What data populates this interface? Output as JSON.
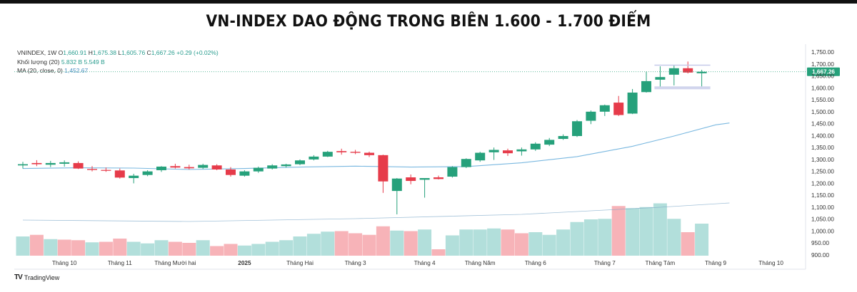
{
  "page": {
    "title": "VN-INDEX DAO ĐỘNG TRONG BIÊN 1.600 - 1.700 ĐIỂM"
  },
  "legend": {
    "symbol": "VNINDEX, 1W",
    "o_label": "O",
    "o_value": "1,660.91",
    "h_label": "H",
    "h_value": "1,675.38",
    "l_label": "L",
    "l_value": "1,605.76",
    "c_label": "C",
    "c_value": "1,667.26",
    "change": "+0.29 (+0.02%)",
    "volume_label": "Khối lượng (20)",
    "volume_values": "5.832 B  5.549 B",
    "ma_label": "MA (20, close, 0)",
    "ma_value": "1,452.67"
  },
  "brand": {
    "name": "TradingView",
    "logo": "TV"
  },
  "colors": {
    "up": "#26a17b",
    "down": "#e63b4a",
    "up_vol": "#b2dfdb",
    "down_vol": "#f7b3b8",
    "ma": "#7ab8e0",
    "price_tag": "#26a17b"
  },
  "chart_data": {
    "type": "candlestick",
    "interval": "1W",
    "y_price_ticks": [
      "1,750.00",
      "1,700.00",
      "1,650.00",
      "1,600.00",
      "1,550.00",
      "1,500.00",
      "1,450.00",
      "1,400.00",
      "1,350.00",
      "1,300.00",
      "1,250.00",
      "1,200.00",
      "1,150.00",
      "1,100.00",
      "1,050.00",
      "1,000.00",
      "950.00",
      "900.00"
    ],
    "y_tick_values": [
      1750,
      1700,
      1650,
      1600,
      1550,
      1500,
      1450,
      1400,
      1350,
      1300,
      1250,
      1200,
      1150,
      1100,
      1050,
      1000,
      950,
      900
    ],
    "x_tick_labels": [
      {
        "label": "Tháng 10",
        "index": 3
      },
      {
        "label": "Tháng 11",
        "index": 7
      },
      {
        "label": "Tháng Mười hai",
        "index": 11
      },
      {
        "label": "2025",
        "index": 16
      },
      {
        "label": "Tháng Hai",
        "index": 20
      },
      {
        "label": "Tháng 3",
        "index": 24
      },
      {
        "label": "Tháng 4",
        "index": 29
      },
      {
        "label": "Tháng Năm",
        "index": 33
      },
      {
        "label": "Tháng 6",
        "index": 37
      },
      {
        "label": "Tháng 7",
        "index": 42
      },
      {
        "label": "Tháng Tám",
        "index": 46
      },
      {
        "label": "Tháng 9",
        "index": 50
      },
      {
        "label": "Tháng 10",
        "index": 54
      }
    ],
    "last_price": "1,667.26",
    "last_price_value": 1667.26,
    "candles": [
      {
        "o": 1275,
        "h": 1290,
        "l": 1262,
        "c": 1280
      },
      {
        "o": 1285,
        "h": 1297,
        "l": 1272,
        "c": 1280
      },
      {
        "o": 1278,
        "h": 1294,
        "l": 1268,
        "c": 1285
      },
      {
        "o": 1282,
        "h": 1296,
        "l": 1270,
        "c": 1288
      },
      {
        "o": 1285,
        "h": 1292,
        "l": 1260,
        "c": 1262
      },
      {
        "o": 1260,
        "h": 1272,
        "l": 1250,
        "c": 1256
      },
      {
        "o": 1256,
        "h": 1266,
        "l": 1248,
        "c": 1254
      },
      {
        "o": 1254,
        "h": 1262,
        "l": 1220,
        "c": 1224
      },
      {
        "o": 1222,
        "h": 1240,
        "l": 1200,
        "c": 1232
      },
      {
        "o": 1235,
        "h": 1255,
        "l": 1230,
        "c": 1250
      },
      {
        "o": 1255,
        "h": 1272,
        "l": 1248,
        "c": 1270
      },
      {
        "o": 1272,
        "h": 1282,
        "l": 1262,
        "c": 1266
      },
      {
        "o": 1268,
        "h": 1278,
        "l": 1258,
        "c": 1263
      },
      {
        "o": 1265,
        "h": 1282,
        "l": 1260,
        "c": 1277
      },
      {
        "o": 1275,
        "h": 1280,
        "l": 1255,
        "c": 1258
      },
      {
        "o": 1258,
        "h": 1268,
        "l": 1228,
        "c": 1235
      },
      {
        "o": 1232,
        "h": 1255,
        "l": 1228,
        "c": 1250
      },
      {
        "o": 1250,
        "h": 1270,
        "l": 1244,
        "c": 1265
      },
      {
        "o": 1262,
        "h": 1280,
        "l": 1258,
        "c": 1275
      },
      {
        "o": 1272,
        "h": 1282,
        "l": 1266,
        "c": 1279
      },
      {
        "o": 1280,
        "h": 1300,
        "l": 1276,
        "c": 1296
      },
      {
        "o": 1300,
        "h": 1318,
        "l": 1296,
        "c": 1312
      },
      {
        "o": 1312,
        "h": 1336,
        "l": 1310,
        "c": 1332
      },
      {
        "o": 1335,
        "h": 1345,
        "l": 1320,
        "c": 1330
      },
      {
        "o": 1332,
        "h": 1340,
        "l": 1322,
        "c": 1328
      },
      {
        "o": 1328,
        "h": 1333,
        "l": 1310,
        "c": 1318
      },
      {
        "o": 1318,
        "h": 1320,
        "l": 1160,
        "c": 1208
      },
      {
        "o": 1168,
        "h": 1222,
        "l": 1070,
        "c": 1220
      },
      {
        "o": 1225,
        "h": 1237,
        "l": 1196,
        "c": 1210
      },
      {
        "o": 1215,
        "h": 1220,
        "l": 1140,
        "c": 1222
      },
      {
        "o": 1225,
        "h": 1232,
        "l": 1216,
        "c": 1218
      },
      {
        "o": 1228,
        "h": 1272,
        "l": 1224,
        "c": 1268
      },
      {
        "o": 1268,
        "h": 1305,
        "l": 1264,
        "c": 1302
      },
      {
        "o": 1296,
        "h": 1332,
        "l": 1290,
        "c": 1328
      },
      {
        "o": 1330,
        "h": 1350,
        "l": 1298,
        "c": 1340
      },
      {
        "o": 1338,
        "h": 1345,
        "l": 1315,
        "c": 1326
      },
      {
        "o": 1334,
        "h": 1350,
        "l": 1316,
        "c": 1342
      },
      {
        "o": 1342,
        "h": 1372,
        "l": 1336,
        "c": 1366
      },
      {
        "o": 1362,
        "h": 1390,
        "l": 1356,
        "c": 1382
      },
      {
        "o": 1386,
        "h": 1405,
        "l": 1382,
        "c": 1398
      },
      {
        "o": 1398,
        "h": 1465,
        "l": 1394,
        "c": 1460
      },
      {
        "o": 1462,
        "h": 1505,
        "l": 1448,
        "c": 1500
      },
      {
        "o": 1500,
        "h": 1530,
        "l": 1482,
        "c": 1527
      },
      {
        "o": 1538,
        "h": 1566,
        "l": 1482,
        "c": 1486
      },
      {
        "o": 1492,
        "h": 1595,
        "l": 1490,
        "c": 1580
      },
      {
        "o": 1582,
        "h": 1668,
        "l": 1580,
        "c": 1628
      },
      {
        "o": 1634,
        "h": 1690,
        "l": 1605,
        "c": 1645
      },
      {
        "o": 1655,
        "h": 1695,
        "l": 1610,
        "c": 1682
      },
      {
        "o": 1682,
        "h": 1710,
        "l": 1660,
        "c": 1664
      },
      {
        "o": 1660.91,
        "h": 1675.38,
        "l": 1605.76,
        "c": 1667.26
      }
    ],
    "volume": [
      {
        "v": 0.72,
        "dir": "up"
      },
      {
        "v": 0.78,
        "dir": "down"
      },
      {
        "v": 0.62,
        "dir": "up"
      },
      {
        "v": 0.6,
        "dir": "down"
      },
      {
        "v": 0.58,
        "dir": "down"
      },
      {
        "v": 0.5,
        "dir": "up"
      },
      {
        "v": 0.52,
        "dir": "down"
      },
      {
        "v": 0.64,
        "dir": "down"
      },
      {
        "v": 0.52,
        "dir": "up"
      },
      {
        "v": 0.46,
        "dir": "up"
      },
      {
        "v": 0.58,
        "dir": "up"
      },
      {
        "v": 0.52,
        "dir": "down"
      },
      {
        "v": 0.48,
        "dir": "down"
      },
      {
        "v": 0.58,
        "dir": "up"
      },
      {
        "v": 0.36,
        "dir": "down"
      },
      {
        "v": 0.44,
        "dir": "down"
      },
      {
        "v": 0.38,
        "dir": "up"
      },
      {
        "v": 0.44,
        "dir": "up"
      },
      {
        "v": 0.52,
        "dir": "up"
      },
      {
        "v": 0.58,
        "dir": "up"
      },
      {
        "v": 0.72,
        "dir": "up"
      },
      {
        "v": 0.82,
        "dir": "up"
      },
      {
        "v": 0.9,
        "dir": "up"
      },
      {
        "v": 0.92,
        "dir": "down"
      },
      {
        "v": 0.84,
        "dir": "down"
      },
      {
        "v": 0.78,
        "dir": "down"
      },
      {
        "v": 1.1,
        "dir": "down"
      },
      {
        "v": 0.94,
        "dir": "up"
      },
      {
        "v": 0.92,
        "dir": "down"
      },
      {
        "v": 0.98,
        "dir": "up"
      },
      {
        "v": 0.24,
        "dir": "down"
      },
      {
        "v": 0.76,
        "dir": "up"
      },
      {
        "v": 0.98,
        "dir": "up"
      },
      {
        "v": 0.98,
        "dir": "up"
      },
      {
        "v": 1.02,
        "dir": "up"
      },
      {
        "v": 0.98,
        "dir": "down"
      },
      {
        "v": 0.84,
        "dir": "down"
      },
      {
        "v": 0.88,
        "dir": "up"
      },
      {
        "v": 0.78,
        "dir": "up"
      },
      {
        "v": 0.98,
        "dir": "up"
      },
      {
        "v": 1.26,
        "dir": "up"
      },
      {
        "v": 1.36,
        "dir": "up"
      },
      {
        "v": 1.38,
        "dir": "up"
      },
      {
        "v": 1.86,
        "dir": "down"
      },
      {
        "v": 1.78,
        "dir": "up"
      },
      {
        "v": 1.82,
        "dir": "up"
      },
      {
        "v": 1.96,
        "dir": "up"
      },
      {
        "v": 1.38,
        "dir": "up"
      },
      {
        "v": 0.88,
        "dir": "down"
      },
      {
        "v": 1.2,
        "dir": "up"
      }
    ],
    "ma_points": [
      [
        0,
        1262
      ],
      [
        4,
        1265
      ],
      [
        8,
        1264
      ],
      [
        12,
        1258
      ],
      [
        16,
        1262
      ],
      [
        20,
        1268
      ],
      [
        24,
        1272
      ],
      [
        28,
        1268
      ],
      [
        32,
        1270
      ],
      [
        36,
        1286
      ],
      [
        40,
        1312
      ],
      [
        44,
        1355
      ],
      [
        47,
        1398
      ],
      [
        50,
        1445
      ],
      [
        51,
        1452.67
      ]
    ]
  }
}
